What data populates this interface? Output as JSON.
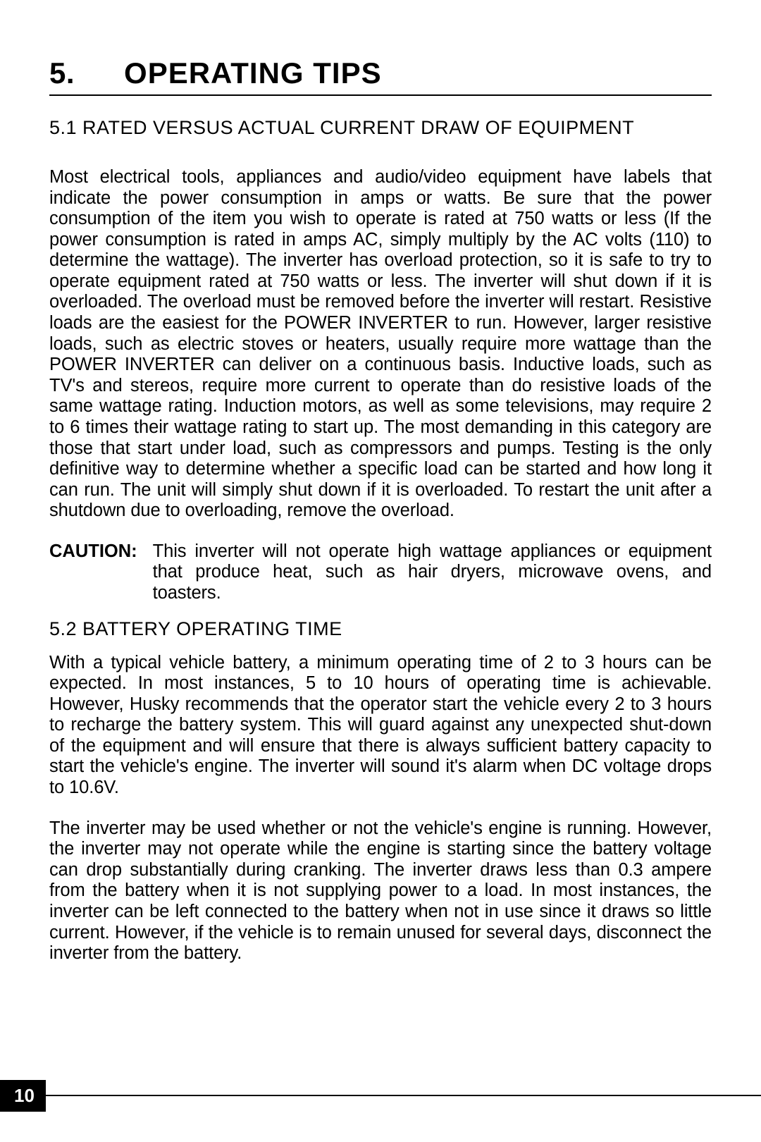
{
  "section": {
    "number": "5.",
    "title": "OPERATING TIPS"
  },
  "sub1": {
    "title": "5.1 RATED VERSUS ACTUAL CURRENT DRAW OF EQUIPMENT",
    "body": "Most electrical tools, appliances and audio/video equipment have labels that indicate the power consumption in amps or watts. Be sure that the power consumption of the item you wish to operate is rated at 750 watts or less (If the power consumption is rated in amps AC, simply multiply by the AC volts (110) to determine the wattage). The inverter has overload protection, so it is safe to try to operate equipment rated at 750 watts or less. The inverter will shut down if it is overloaded. The overload must be removed before the inverter will restart. Resistive loads are the easiest for the POWER INVERTER to run. However, larger resistive loads, such as electric stoves or heaters, usually require more wattage than the POWER INVERTER can deliver on a continuous basis. Inductive loads, such as TV's and stereos, require more current to operate than do resistive loads of the same wattage rating. Induction motors, as well as some televisions, may require 2 to 6 times their wattage rating to start up. The most demanding in this category are those that start under load, such as compressors and pumps. Testing is the only definitive way to determine whether a specific load can be started and how long it can run. The unit will simply shut down if it is overloaded. To restart the unit after a shutdown due to overloading, remove the overload."
  },
  "caution": {
    "label": "CAUTION:",
    "text": "This inverter will not operate high wattage appliances or equipment that produce heat, such as hair dryers, microwave ovens, and toasters."
  },
  "sub2": {
    "title": "5.2  BATTERY OPERATING TIME",
    "body1": "With a typical vehicle battery, a minimum operating time of 2 to 3 hours can be expected. In most instances, 5 to 10 hours of operating time is achievable. However, Husky recommends that the operator start the vehicle every 2 to 3 hours to recharge the battery system. This will guard against any unexpected shut-down of the equipment and will ensure that there is always sufficient battery capacity to start the vehicle's engine. The inverter will sound it's alarm when DC voltage drops to 10.6V.",
    "body2": "The inverter may be used whether or not the vehicle's engine is running. However, the inverter may not operate while the engine is starting since the battery voltage can drop substantially during cranking.  The inverter draws less than 0.3 ampere from the battery when it is not supplying power to a load. In most instances, the inverter can be left connected to the battery when not in use since it draws so little current. However, if the vehicle is to remain unused for several days, disconnect the inverter from the battery."
  },
  "page_number": "10"
}
